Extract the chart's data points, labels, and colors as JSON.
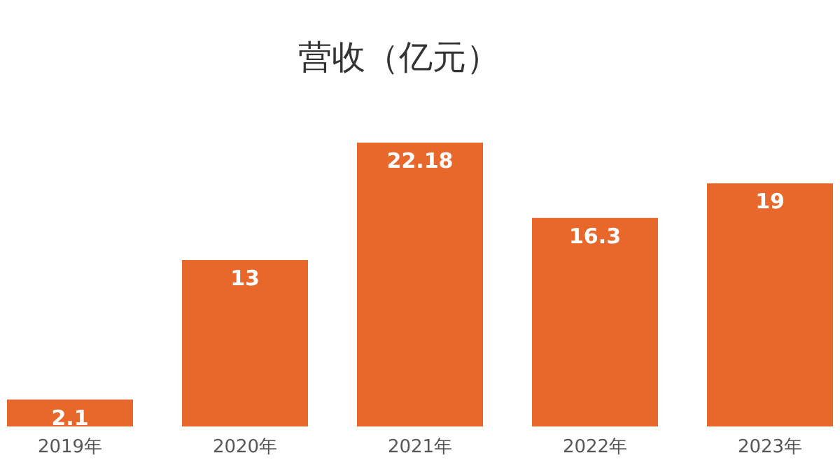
{
  "chart_data": {
    "type": "bar",
    "title": "营收（亿元）",
    "categories": [
      "2019年",
      "2020年",
      "2021年",
      "2022年",
      "2023年"
    ],
    "values": [
      2.1,
      13,
      22.18,
      16.3,
      19
    ],
    "color": "#e8672b",
    "data_labels": true
  }
}
